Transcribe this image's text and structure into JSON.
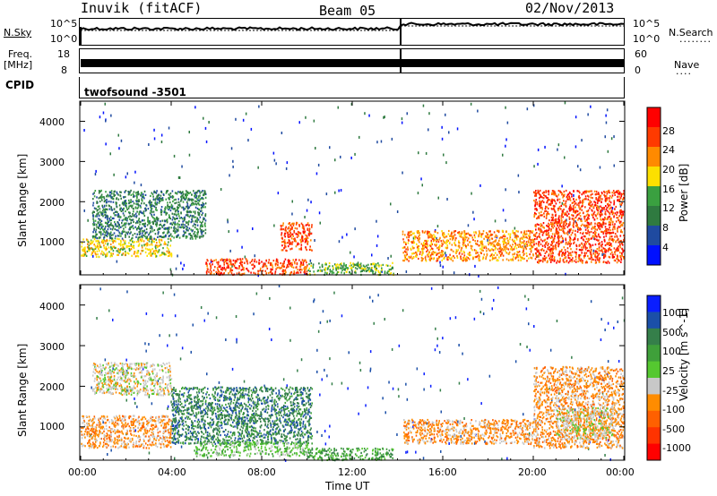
{
  "header": {
    "station": "Inuvik (fitACF)",
    "beam": "Beam 05",
    "date": "02/Nov/2013"
  },
  "top_panels": {
    "nsky_label": "N.Sky",
    "nsky_ticks": [
      "10^5",
      "10^0"
    ],
    "nsearch_label": "N.Search",
    "nsearch_ticks": [
      "10^5",
      "10^0"
    ],
    "freq_label_1": "Freq.",
    "freq_label_2": "[MHz]",
    "freq_ticks": [
      "18",
      "8"
    ],
    "nave_label": "Nave",
    "nave_ticks": [
      "60",
      "0"
    ],
    "cpid_label": "CPID",
    "cpid_value": "twofsound -3501"
  },
  "colors": {
    "power_scale": [
      "#0010ff",
      "#1f4aa0",
      "#2f7a40",
      "#3aa040",
      "#fce000",
      "#ff8a00",
      "#ff3a00",
      "#ff0000"
    ],
    "velocity_scale": [
      "#0a1eff",
      "#1b4fa8",
      "#357f4a",
      "#3fa03a",
      "#55c830",
      "#c8c8c8",
      "#ff8c00",
      "#ff6000",
      "#ff3300",
      "#ff0000"
    ]
  },
  "chart_data": [
    {
      "type": "heatmap",
      "title": "",
      "ylabel": "Slant Range [km]",
      "xlabel": "",
      "y_ticks": [
        "1000",
        "2000",
        "3000",
        "4000"
      ],
      "ylim": [
        180,
        4500
      ],
      "x_ticks": [
        "00:00",
        "04:00",
        "08:00",
        "12:00",
        "16:00",
        "20:00",
        "00:00"
      ],
      "colorbar": {
        "label": "Power [dB]",
        "ticks": [
          "4",
          "8",
          "12",
          "16",
          "20",
          "24",
          "28"
        ]
      },
      "regions": [
        {
          "t0": 0.0,
          "t1": 4.0,
          "r0": 650,
          "r1": 1100,
          "value_class": 4
        },
        {
          "t0": 0.5,
          "t1": 5.5,
          "r0": 1100,
          "r1": 2300,
          "value_class": 2
        },
        {
          "t0": 5.5,
          "t1": 10.0,
          "r0": 200,
          "r1": 600,
          "value_class": 6
        },
        {
          "t0": 8.8,
          "t1": 10.2,
          "r0": 800,
          "r1": 1500,
          "value_class": 6
        },
        {
          "t0": 10.0,
          "t1": 13.8,
          "r0": 200,
          "r1": 500,
          "value_class": 3
        },
        {
          "t0": 14.2,
          "t1": 20.0,
          "r0": 550,
          "r1": 1300,
          "value_class": 5
        },
        {
          "t0": 20.0,
          "t1": 24.0,
          "r0": 500,
          "r1": 2300,
          "value_class": 6
        }
      ]
    },
    {
      "type": "heatmap",
      "title": "",
      "ylabel": "Slant Range [km]",
      "xlabel": "Time UT",
      "y_ticks": [
        "1000",
        "2000",
        "3000",
        "4000"
      ],
      "ylim": [
        180,
        4500
      ],
      "x_ticks": [
        "00:00",
        "04:00",
        "08:00",
        "12:00",
        "16:00",
        "20:00",
        "00:00"
      ],
      "colorbar": {
        "label": "Velocity [m s^-1]",
        "ticks": [
          "1000",
          "500",
          "100",
          "25",
          "-25",
          "-100",
          "-500",
          "-1000"
        ]
      },
      "regions": [
        {
          "t0": 0.0,
          "t1": 4.0,
          "r0": 500,
          "r1": 1300,
          "value_class": 6
        },
        {
          "t0": 0.5,
          "t1": 4.0,
          "r0": 1800,
          "r1": 2600,
          "value_class": 5
        },
        {
          "t0": 4.0,
          "t1": 10.2,
          "r0": 600,
          "r1": 2000,
          "value_class": 2
        },
        {
          "t0": 5.0,
          "t1": 10.0,
          "r0": 300,
          "r1": 650,
          "value_class": 4
        },
        {
          "t0": 10.0,
          "t1": 13.8,
          "r0": 200,
          "r1": 500,
          "value_class": 3
        },
        {
          "t0": 14.2,
          "t1": 20.0,
          "r0": 600,
          "r1": 1200,
          "value_class": 6
        },
        {
          "t0": 20.0,
          "t1": 24.0,
          "r0": 500,
          "r1": 2500,
          "value_class": 6
        },
        {
          "t0": 21.0,
          "t1": 23.5,
          "r0": 700,
          "r1": 1500,
          "value_class": 5
        }
      ]
    }
  ]
}
